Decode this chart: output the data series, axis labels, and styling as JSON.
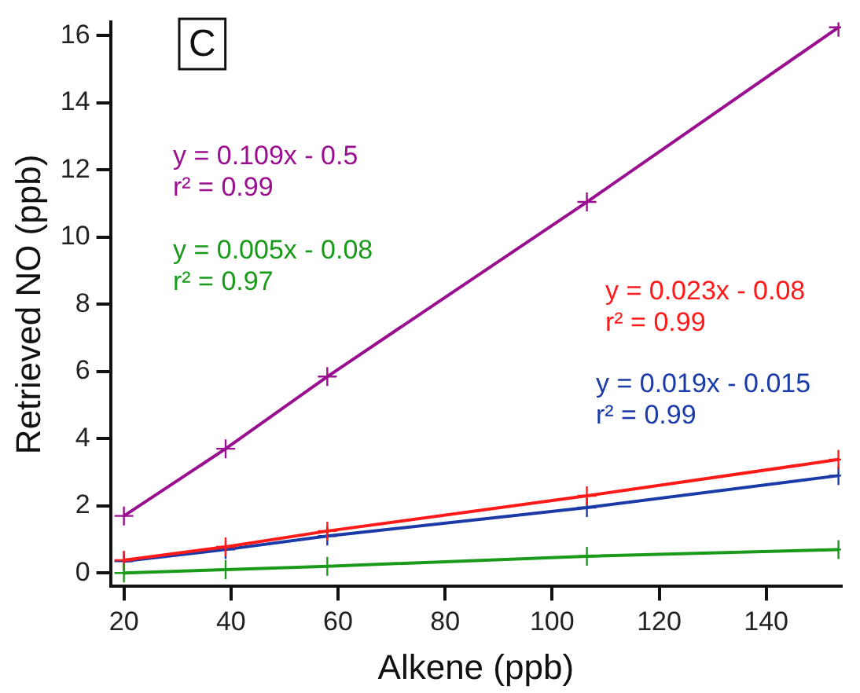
{
  "chart_data": {
    "type": "line",
    "title": "C",
    "xlabel": "Alkene (ppb)",
    "ylabel": "Retrieved NO (ppb)",
    "x": [
      20,
      39,
      58,
      106.5,
      153.5
    ],
    "series": [
      {
        "color": "#990f8f",
        "values": [
          1.7,
          3.7,
          5.85,
          11.05,
          16.25
        ]
      },
      {
        "color": "#1a9a1a",
        "values": [
          0.0,
          0.1,
          0.2,
          0.5,
          0.7
        ]
      },
      {
        "color": "#ff1a1a",
        "values": [
          0.38,
          0.78,
          1.25,
          2.3,
          3.38
        ]
      },
      {
        "color": "#1a3aa8",
        "values": [
          0.35,
          0.7,
          1.1,
          1.95,
          2.9
        ]
      }
    ],
    "annotations": [
      "y = 0.109x - 0.5\nr² = 0.99",
      "y = 0.005x - 0.08\nr² = 0.97",
      "y = 0.023x - 0.08\nr² = 0.99",
      "y = 0.019x - 0.015\nr² = 0.99"
    ],
    "xlim": [
      17.5,
      154
    ],
    "xticks": [
      20,
      40,
      60,
      80,
      100,
      120,
      140
    ],
    "ylim": [
      -0.4,
      16.4
    ],
    "yticks": [
      0,
      2,
      4,
      6,
      8,
      10,
      12,
      14,
      16
    ],
    "marker": "cross",
    "grid": false,
    "legend": false
  }
}
